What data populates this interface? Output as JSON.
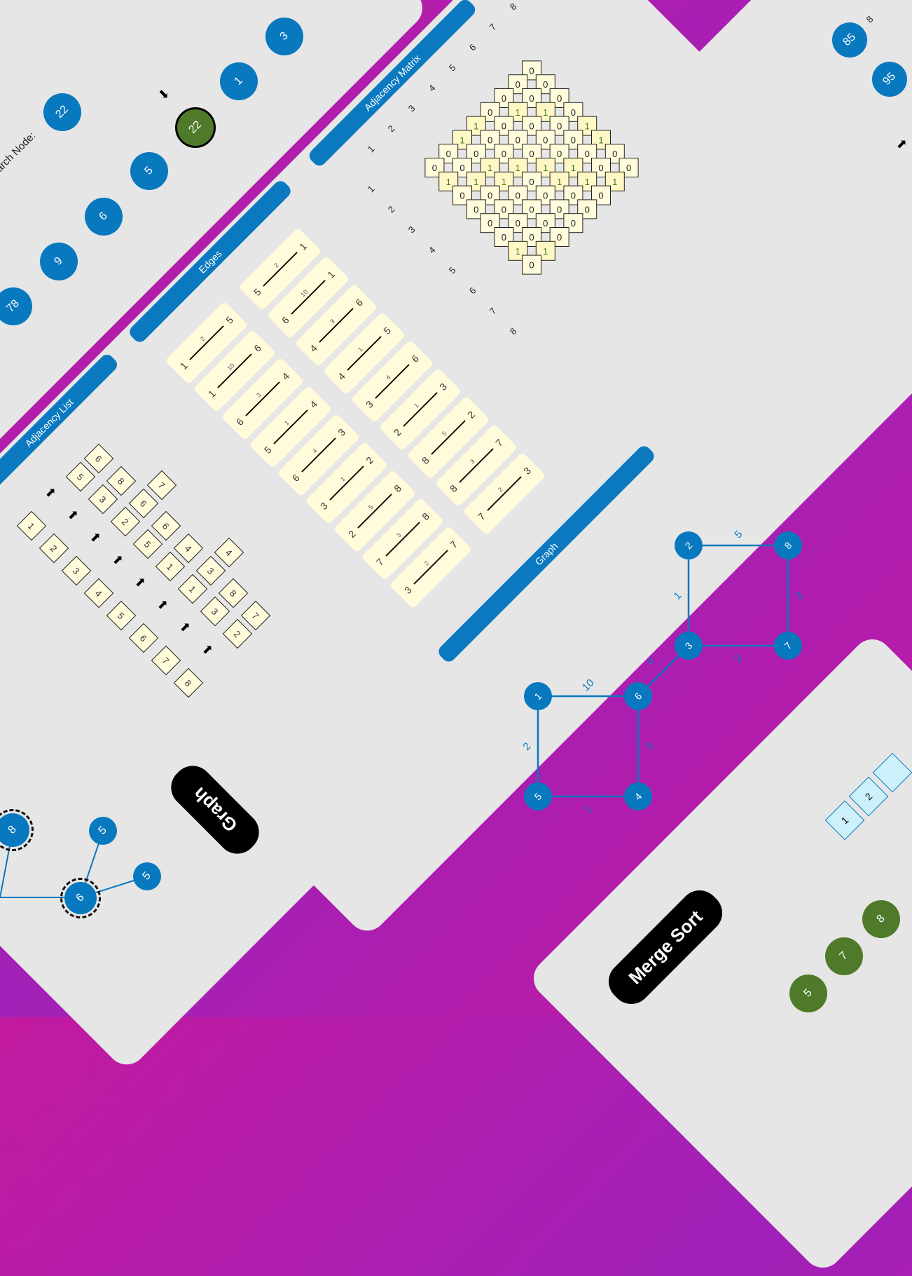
{
  "colors": {
    "accent": "#0a79c0",
    "visited": "#4f7a2a",
    "cell": "#fffbdb",
    "magenta": "#c21aa0"
  },
  "search": {
    "label": "Search Node:",
    "nodes": [
      "22",
      "78",
      "9",
      "6",
      "5",
      "22",
      "1",
      "3"
    ]
  },
  "sections": {
    "adjacency_list": "Adjacency List",
    "edges": "Edges",
    "adjacency_matrix": "Adjacency Matrix",
    "graph": "Graph"
  },
  "tags": {
    "graph": "Graph",
    "merge_sort": "Merge Sort"
  },
  "adjacency_list": [
    {
      "node": "1",
      "neighbors": [
        "5",
        "6"
      ]
    },
    {
      "node": "2",
      "neighbors": [
        "3",
        "8"
      ]
    },
    {
      "node": "3",
      "neighbors": [
        "2",
        "6",
        "7"
      ]
    },
    {
      "node": "4",
      "neighbors": [
        "5",
        "6"
      ]
    },
    {
      "node": "5",
      "neighbors": [
        "1",
        "4"
      ]
    },
    {
      "node": "6",
      "neighbors": [
        "1",
        "3",
        "4"
      ]
    },
    {
      "node": "7",
      "neighbors": [
        "3",
        "8"
      ]
    },
    {
      "node": "8",
      "neighbors": [
        "2",
        "7"
      ]
    }
  ],
  "edges": [
    {
      "from": "1",
      "w": "2",
      "to": "5"
    },
    {
      "from": "1",
      "w": "10",
      "to": "6"
    },
    {
      "from": "6",
      "w": "3",
      "to": "4"
    },
    {
      "from": "5",
      "w": "1",
      "to": "4"
    },
    {
      "from": "6",
      "w": "4",
      "to": "3"
    },
    {
      "from": "3",
      "w": "1",
      "to": "2"
    },
    {
      "from": "2",
      "w": "5",
      "to": "8"
    },
    {
      "from": "7",
      "w": "3",
      "to": "8"
    },
    {
      "from": "3",
      "w": "2",
      "to": "7"
    },
    {
      "from": "5",
      "w": "2",
      "to": "1"
    },
    {
      "from": "6",
      "w": "10",
      "to": "1"
    },
    {
      "from": "4",
      "w": "3",
      "to": "6"
    },
    {
      "from": "4",
      "w": "1",
      "to": "5"
    },
    {
      "from": "3",
      "w": "4",
      "to": "6"
    },
    {
      "from": "2",
      "w": "1",
      "to": "3"
    },
    {
      "from": "8",
      "w": "5",
      "to": "2"
    },
    {
      "from": "8",
      "w": "3",
      "to": "7"
    },
    {
      "from": "7",
      "w": "2",
      "to": "3"
    }
  ],
  "matrix": {
    "labels": [
      "1",
      "2",
      "3",
      "4",
      "5",
      "6",
      "7",
      "8"
    ],
    "rows": [
      [
        "0",
        "0",
        "0",
        "0",
        "1",
        "1",
        "0",
        "0"
      ],
      [
        "0",
        "0",
        "1",
        "0",
        "0",
        "0",
        "0",
        "1"
      ],
      [
        "0",
        "1",
        "0",
        "0",
        "0",
        "1",
        "1",
        "0"
      ],
      [
        "0",
        "0",
        "0",
        "0",
        "1",
        "1",
        "0",
        "0"
      ],
      [
        "1",
        "0",
        "0",
        "1",
        "0",
        "0",
        "0",
        "0"
      ],
      [
        "1",
        "0",
        "1",
        "1",
        "0",
        "0",
        "0",
        "0"
      ],
      [
        "0",
        "0",
        "1",
        "0",
        "0",
        "0",
        "0",
        "1"
      ],
      [
        "0",
        "1",
        "0",
        "0",
        "0",
        "0",
        "1",
        "0"
      ]
    ]
  },
  "graph": {
    "nodes": [
      "1",
      "2",
      "3",
      "4",
      "5",
      "6",
      "7",
      "8"
    ],
    "edges": [
      {
        "a": "2",
        "b": "8",
        "w": "5"
      },
      {
        "a": "8",
        "b": "7",
        "w": "3"
      },
      {
        "a": "2",
        "b": "3",
        "w": "1"
      },
      {
        "a": "3",
        "b": "7",
        "w": "2"
      },
      {
        "a": "6",
        "b": "3",
        "w": "4"
      },
      {
        "a": "1",
        "b": "6",
        "w": "10"
      },
      {
        "a": "1",
        "b": "5",
        "w": "2"
      },
      {
        "a": "6",
        "b": "4",
        "w": "3"
      },
      {
        "a": "5",
        "b": "4",
        "w": "1"
      }
    ]
  },
  "bottom_graph": {
    "nodes": [
      "8",
      "5",
      "6",
      "5"
    ]
  },
  "right_card": {
    "nodes": [
      "85",
      "95"
    ],
    "index_label": "8"
  },
  "merge": {
    "boxes": [
      "1",
      "2",
      ""
    ],
    "nodes": [
      "5",
      "7",
      "8"
    ]
  }
}
